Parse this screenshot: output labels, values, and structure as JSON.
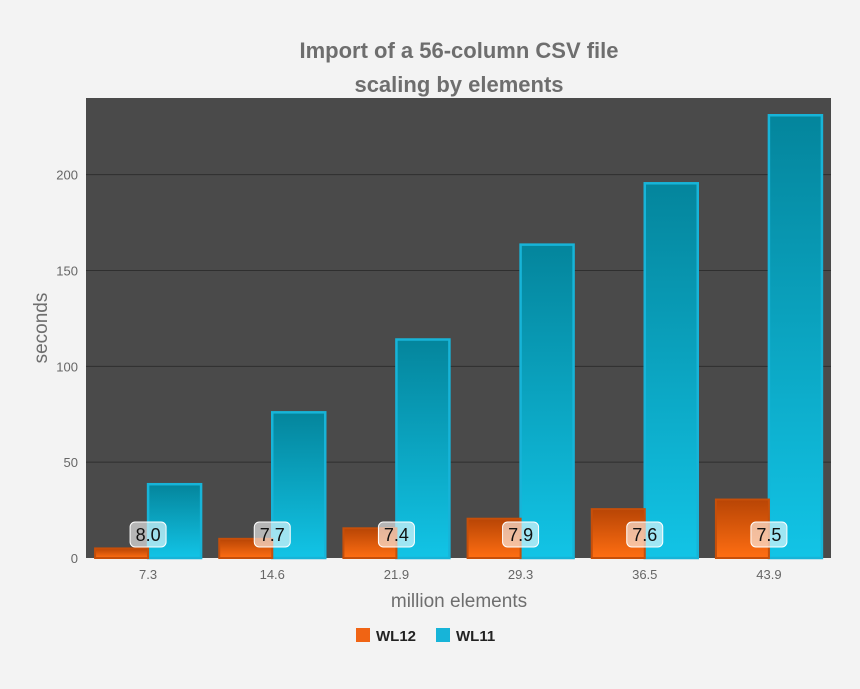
{
  "chart_data": {
    "type": "bar",
    "title": "Import of a 56-column CSV file",
    "subtitle": "scaling by elements",
    "xlabel": "million elements",
    "ylabel": "seconds",
    "categories": [
      "7.3",
      "14.6",
      "21.9",
      "29.3",
      "36.5",
      "43.9"
    ],
    "series": [
      {
        "name": "WL12",
        "color": "#f06414",
        "values": [
          5,
          10,
          15.5,
          20.5,
          25.5,
          30.5
        ]
      },
      {
        "name": "WL11",
        "color": "#17b4d8",
        "values": [
          38.5,
          76,
          114,
          163.5,
          195.5,
          231
        ]
      }
    ],
    "data_labels": [
      "8.0",
      "7.7",
      "7.4",
      "7.9",
      "7.6",
      "7.5"
    ],
    "ylim": [
      0,
      240
    ],
    "yticks": [
      0,
      50,
      100,
      150,
      200
    ],
    "grid": true,
    "legend": "bottom-center",
    "plot_background": "#4a4a4a"
  }
}
